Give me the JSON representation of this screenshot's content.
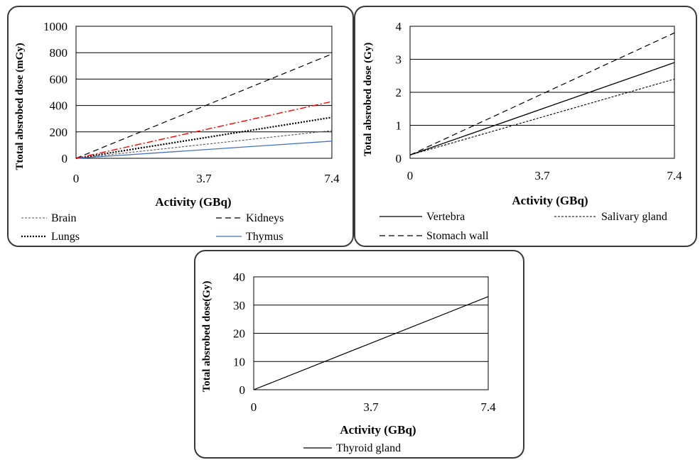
{
  "chart_data": [
    {
      "type": "line",
      "xlabel": "Activity (GBq)",
      "ylabel": "Ttotal absrobed dose (mGy)",
      "x": [
        0,
        3.7,
        7.4
      ],
      "x_tick_labels": [
        "0",
        "3.7",
        "7.4"
      ],
      "ylim": [
        0,
        1000
      ],
      "y_ticks": [
        0,
        200,
        400,
        600,
        800,
        1000
      ],
      "y_tick_labels": [
        "0",
        "200",
        "400",
        "600",
        "800",
        "1000"
      ],
      "grid": "horizontal",
      "legend": "bottom",
      "series": [
        {
          "name": "Brain",
          "values": [
            0,
            105,
            210
          ],
          "color": "#555555",
          "dash": "3,2",
          "width": 1.1
        },
        {
          "name": "Kidneys",
          "values": [
            0,
            395,
            790
          ],
          "color": "#000000",
          "dash": "8,5",
          "width": 1.2
        },
        {
          "name": "Lungs",
          "values": [
            0,
            155,
            310
          ],
          "color": "#000000",
          "dash": "2,2",
          "width": 2.2
        },
        {
          "name": "Thymus",
          "values": [
            0,
            65,
            130
          ],
          "color": "#4472C4",
          "dash": "",
          "width": 1.3
        },
        {
          "name": "",
          "values": [
            0,
            215,
            430
          ],
          "color": "#FF0000",
          "dash": "9,3,2,3",
          "width": 1.4,
          "legend": false
        }
      ]
    },
    {
      "type": "line",
      "xlabel": "Activity (GBq)",
      "ylabel": "Total absrobed dose (Gy)",
      "x": [
        0,
        3.7,
        7.4
      ],
      "x_tick_labels": [
        "0",
        "3.7",
        "7.4"
      ],
      "ylim": [
        0,
        4
      ],
      "y_ticks": [
        0,
        1,
        2,
        3,
        4
      ],
      "y_tick_labels": [
        "0",
        "1",
        "2",
        "3",
        "4"
      ],
      "grid": "horizontal",
      "legend": "bottom",
      "series": [
        {
          "name": "Vertebra",
          "values": [
            0.1,
            1.5,
            2.9
          ],
          "color": "#000000",
          "dash": "",
          "width": 1.3
        },
        {
          "name": "Salivary gland",
          "values": [
            0.1,
            1.25,
            2.4
          ],
          "color": "#000000",
          "dash": "3,2",
          "width": 1.1
        },
        {
          "name": "Stomach wall",
          "values": [
            0.1,
            1.95,
            3.8
          ],
          "color": "#000000",
          "dash": "8,5",
          "width": 1.2
        }
      ]
    },
    {
      "type": "line",
      "xlabel": "Activity (GBq)",
      "ylabel": "Total absrobed dose(Gy)",
      "x": [
        0,
        3.7,
        7.4
      ],
      "x_tick_labels": [
        "0",
        "3.7",
        "7.4"
      ],
      "ylim": [
        0,
        40
      ],
      "y_ticks": [
        0,
        10,
        20,
        30,
        40
      ],
      "y_tick_labels": [
        "0",
        "10",
        "20",
        "30",
        "40"
      ],
      "grid": "horizontal",
      "legend": "bottom",
      "series": [
        {
          "name": "Thyroid gland",
          "values": [
            0,
            16.5,
            33
          ],
          "color": "#000000",
          "dash": "",
          "width": 1.2
        }
      ]
    }
  ]
}
